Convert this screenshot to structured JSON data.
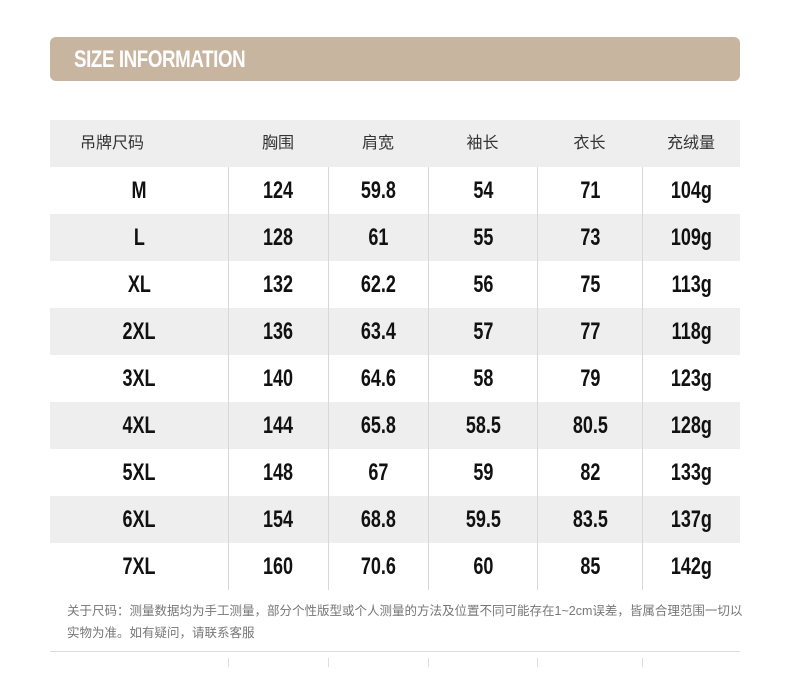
{
  "banner": {
    "title": "SIZE INFORMATION"
  },
  "table": {
    "headers": [
      "吊牌尺码",
      "胸围",
      "肩宽",
      "袖长",
      "衣长",
      "充绒量"
    ],
    "rows": [
      [
        "M",
        "124",
        "59.8",
        "54",
        "71",
        "104g"
      ],
      [
        "L",
        "128",
        "61",
        "55",
        "73",
        "109g"
      ],
      [
        "XL",
        "132",
        "62.2",
        "56",
        "75",
        "113g"
      ],
      [
        "2XL",
        "136",
        "63.4",
        "57",
        "77",
        "118g"
      ],
      [
        "3XL",
        "140",
        "64.6",
        "58",
        "79",
        "123g"
      ],
      [
        "4XL",
        "144",
        "65.8",
        "58.5",
        "80.5",
        "128g"
      ],
      [
        "5XL",
        "148",
        "67",
        "59",
        "82",
        "133g"
      ],
      [
        "6XL",
        "154",
        "68.8",
        "59.5",
        "83.5",
        "137g"
      ],
      [
        "7XL",
        "160",
        "70.6",
        "60",
        "85",
        "142g"
      ]
    ]
  },
  "note": "关于尺码：测量数据均为手工测量，部分个性版型或个人测量的方法及位置不同可能存在1~2cm误差，皆属合理范围一切以实物为准。如有疑问，请联系客服",
  "colors": {
    "banner": "#c8b5a0",
    "header_bg": "#eeeeee",
    "stripe_bg": "#eeeeee"
  }
}
